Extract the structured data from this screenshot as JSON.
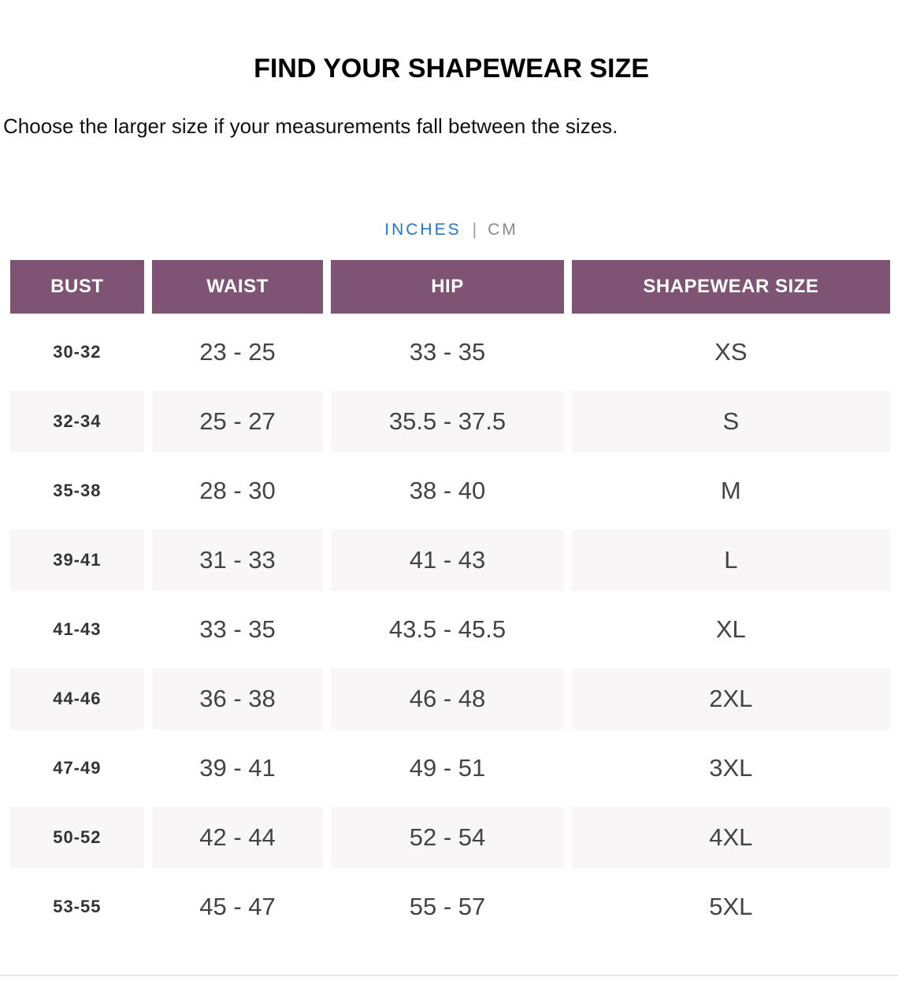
{
  "title": "FIND YOUR SHAPEWEAR SIZE",
  "subtitle": "Choose the larger size if your measurements fall between the sizes.",
  "units": {
    "active": "INCHES",
    "separator": "|",
    "inactive": "CM"
  },
  "colors": {
    "header_bg": "#7f5373",
    "active_unit": "#1d78d4",
    "stripe": "#f8f6f6"
  },
  "table": {
    "headers": [
      "BUST",
      "WAIST",
      "HIP",
      "SHAPEWEAR SIZE"
    ],
    "rows": [
      [
        "30-32",
        "23 - 25",
        "33 - 35",
        "XS"
      ],
      [
        "32-34",
        "25 - 27",
        "35.5 - 37.5",
        "S"
      ],
      [
        "35-38",
        "28 - 30",
        "38 - 40",
        "M"
      ],
      [
        "39-41",
        "31 - 33",
        "41 - 43",
        "L"
      ],
      [
        "41-43",
        "33 - 35",
        "43.5 - 45.5",
        "XL"
      ],
      [
        "44-46",
        "36 - 38",
        "46 - 48",
        "2XL"
      ],
      [
        "47-49",
        "39 - 41",
        "49 - 51",
        "3XL"
      ],
      [
        "50-52",
        "42 - 44",
        "52 - 54",
        "4XL"
      ],
      [
        "53-55",
        "45 - 47",
        "55 - 57",
        "5XL"
      ]
    ]
  }
}
